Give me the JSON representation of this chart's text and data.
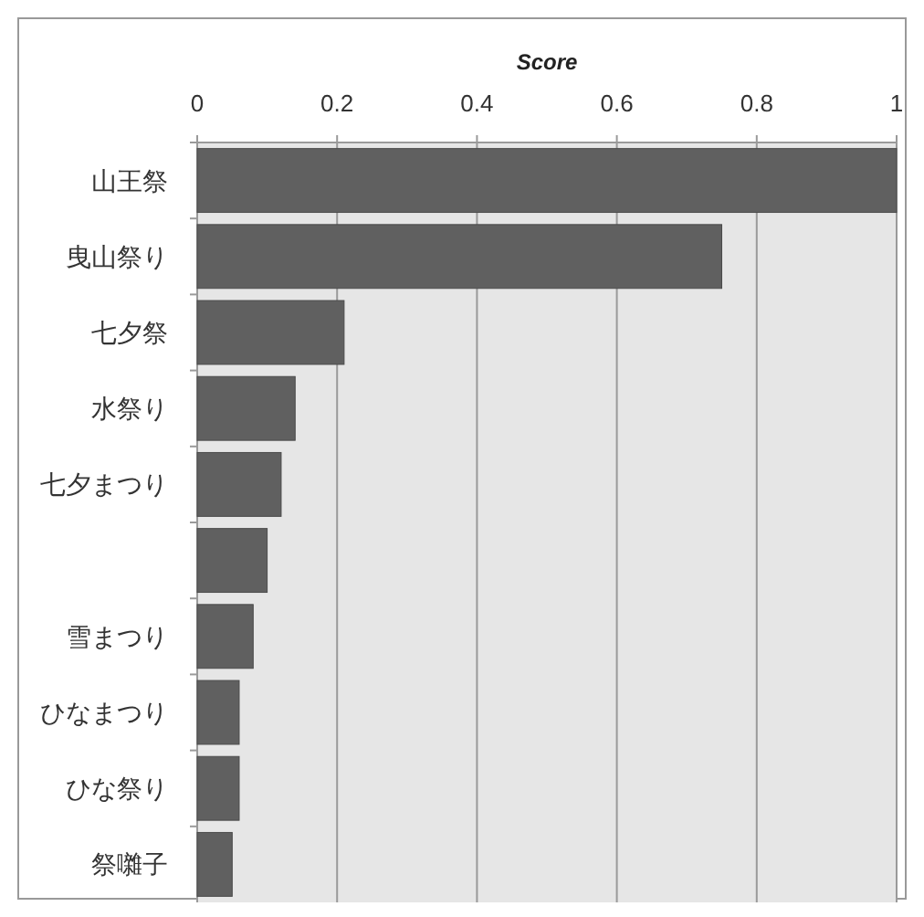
{
  "chart_data": {
    "type": "bar",
    "orientation": "horizontal",
    "xlabel": "Score",
    "categories": [
      "山王祭",
      "曳山祭り",
      "七夕祭",
      "水祭り",
      "七夕まつり",
      null,
      "雪まつり",
      "ひなまつり",
      "ひな祭り",
      "祭囃子"
    ],
    "values": [
      1.0,
      0.75,
      0.21,
      0.14,
      0.12,
      0.1,
      0.08,
      0.06,
      0.06,
      0.05
    ],
    "color": "#606060",
    "xlim": [
      0,
      1
    ],
    "xticks": [
      0,
      0.2,
      0.4,
      0.6,
      0.8,
      1
    ],
    "grid": "x"
  }
}
